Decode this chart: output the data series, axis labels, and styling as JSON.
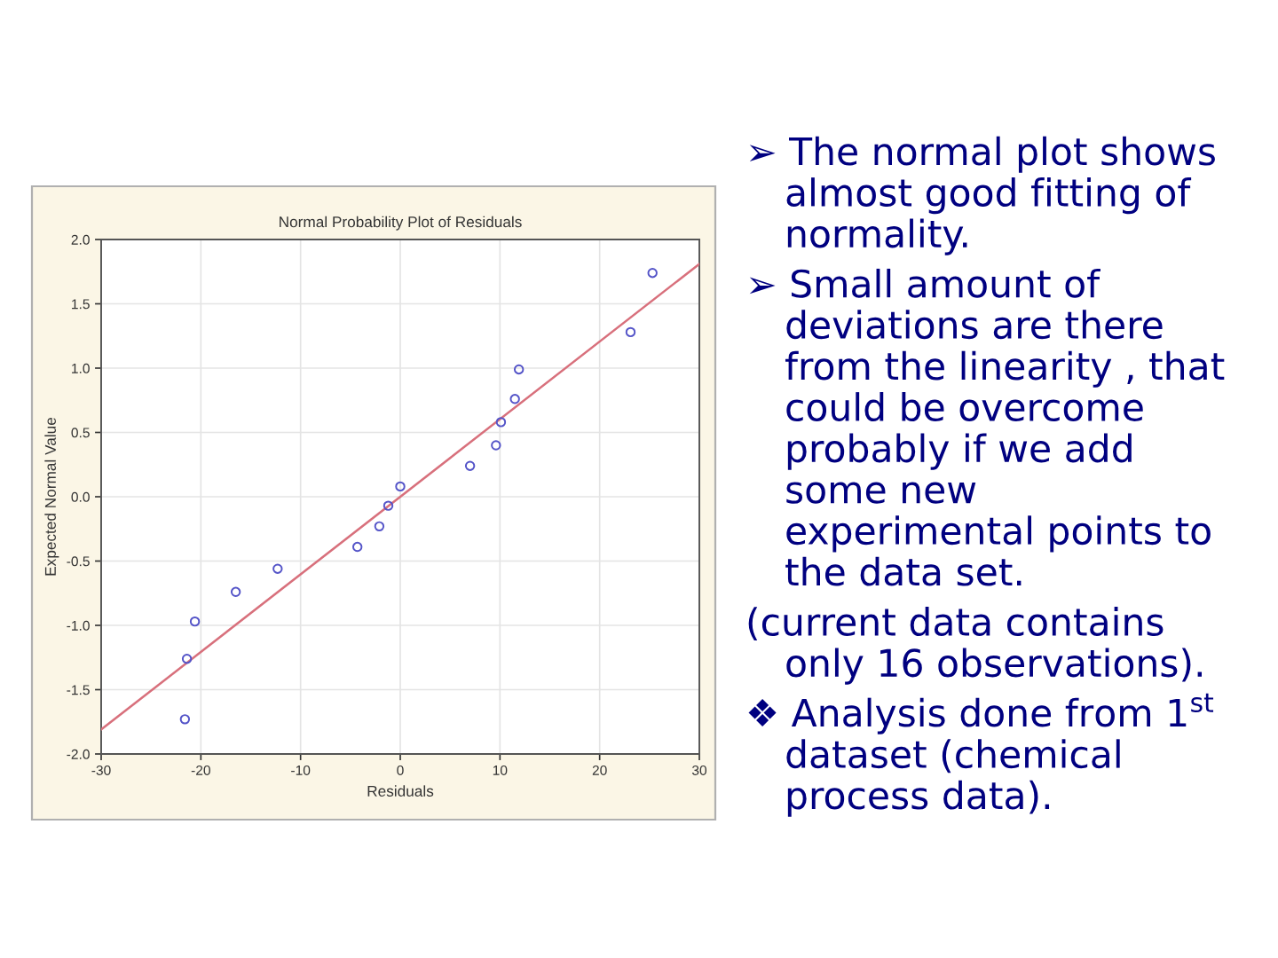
{
  "chart_data": {
    "type": "scatter",
    "title": "Normal Probability Plot of Residuals",
    "xlabel": "Residuals",
    "ylabel": "Expected Normal Value",
    "xlim": [
      -30,
      30
    ],
    "ylim": [
      -2,
      2
    ],
    "xticks": [
      -30,
      -20,
      -10,
      0,
      10,
      20,
      30
    ],
    "yticks": [
      {
        "value": -2,
        "label": "-2.0"
      },
      {
        "value": -1.5,
        "label": "-1.5"
      },
      {
        "value": -1,
        "label": "-1.0"
      },
      {
        "value": -0.5,
        "label": "-0.5"
      },
      {
        "value": 0,
        "label": "0.0"
      },
      {
        "value": 0.5,
        "label": "0.5"
      },
      {
        "value": 1,
        "label": "1.0"
      },
      {
        "value": 1.5,
        "label": "1.5"
      },
      {
        "value": 2,
        "label": "2.0"
      }
    ],
    "grid": true,
    "series": [
      {
        "color": "#5454c8",
        "marker": "circle",
        "x": [
          -21.6,
          -21.4,
          -20.6,
          -16.5,
          -12.3,
          -4.3,
          -2.1,
          -1.2,
          0.0,
          7.0,
          9.6,
          10.1,
          11.5,
          11.9,
          23.1,
          25.3
        ],
        "values": [
          -1.73,
          -1.26,
          -0.97,
          -0.74,
          -0.56,
          -0.39,
          -0.23,
          -0.07,
          0.08,
          0.24,
          0.4,
          0.58,
          0.76,
          0.99,
          1.28,
          1.74
        ]
      },
      {
        "type": "line",
        "color": "#d8707c",
        "line_style": "solid",
        "marker": "none",
        "x": [
          -30,
          30
        ],
        "values": [
          -1.81,
          1.81
        ]
      }
    ],
    "annotations": [
      "➢ The normal plot shows\nalmost good fitting of\nnormality.",
      "➢ Small amount of\ndeviations are there\nfrom the linearity , that\ncould be overcome\nprobably if we add\nsome new\nexperimental points to\nthe data set.",
      "(current data contains\nonly 16 observations).",
      "❖ Analysis done from 1$^{st}$\ndataset (chemical\nprocess data)."
    ]
  }
}
